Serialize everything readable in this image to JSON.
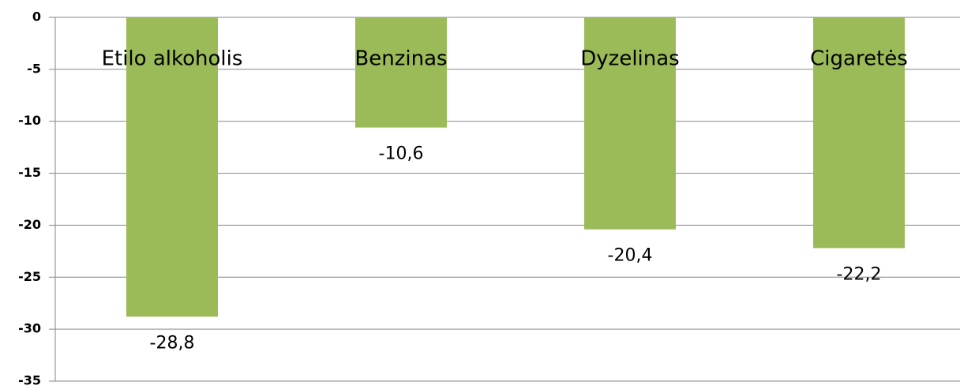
{
  "chart_data": {
    "type": "bar",
    "categories": [
      "Etilo alkoholis",
      "Benzinas",
      "Dyzelinas",
      "Cigaretės"
    ],
    "values": [
      -28.8,
      -10.6,
      -20.4,
      -22.2
    ],
    "value_labels": [
      "-28,8",
      "-10,6",
      "-20,4",
      "-22,2"
    ],
    "color": "#9bbb59",
    "ylim": [
      -35,
      0
    ],
    "yticks": [
      0,
      -5,
      -10,
      -15,
      -20,
      -25,
      -30,
      -35
    ],
    "grid": true
  }
}
